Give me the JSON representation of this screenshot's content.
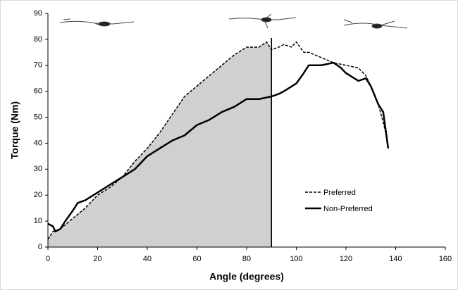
{
  "chart_data": {
    "type": "line",
    "xlabel": "Angle (degrees)",
    "ylabel": "Torque (Nm)",
    "xlim": [
      0,
      160
    ],
    "xticks": [
      0,
      20,
      40,
      60,
      80,
      100,
      120,
      140,
      160
    ],
    "ylim": [
      0,
      90
    ],
    "yticks": [
      0,
      10,
      20,
      30,
      40,
      50,
      60,
      70,
      80,
      90
    ],
    "grid": false,
    "vline_x": 90,
    "shade_color": "#d0d0d0",
    "series": [
      {
        "name": "Preferred",
        "color": "#000000",
        "dash": true,
        "width": 1.5,
        "x": [
          0,
          2,
          5,
          10,
          15,
          20,
          25,
          30,
          35,
          40,
          45,
          50,
          55,
          60,
          65,
          70,
          75,
          80,
          85,
          88,
          90,
          93,
          95,
          98,
          100,
          103,
          105,
          110,
          115,
          120,
          125,
          128,
          130,
          133,
          135,
          136
        ],
        "values": [
          3,
          6,
          7,
          11,
          15,
          20,
          23,
          27,
          33,
          38,
          44,
          51,
          58,
          62,
          66,
          70,
          74,
          77,
          77,
          79,
          76,
          77,
          78,
          77,
          79,
          75,
          75,
          73,
          71,
          70,
          69,
          66,
          62,
          55,
          48,
          44
        ]
      },
      {
        "name": "Non-Preferred",
        "color": "#000000",
        "dash": false,
        "width": 2.5,
        "x": [
          0,
          2,
          3,
          5,
          7,
          10,
          12,
          15,
          20,
          25,
          30,
          35,
          40,
          45,
          50,
          55,
          60,
          65,
          70,
          75,
          80,
          85,
          90,
          93,
          95,
          100,
          103,
          105,
          110,
          115,
          118,
          120,
          125,
          128,
          130,
          133,
          135,
          136,
          137
        ],
        "values": [
          9,
          8,
          6,
          7,
          10,
          14,
          17,
          18,
          21,
          24,
          27,
          30,
          35,
          38,
          41,
          43,
          47,
          49,
          52,
          54,
          57,
          57,
          58,
          59,
          60,
          63,
          67,
          70,
          70,
          71,
          69,
          67,
          64,
          65,
          62,
          55,
          52,
          45,
          38
        ]
      }
    ]
  }
}
